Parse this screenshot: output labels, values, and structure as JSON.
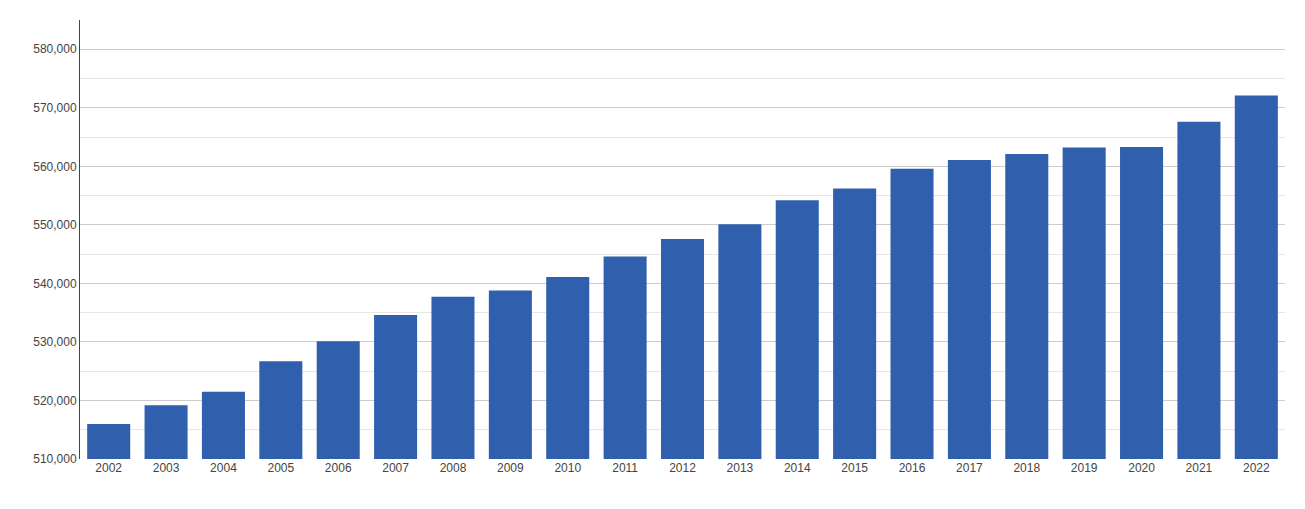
{
  "chart_data": {
    "type": "bar",
    "categories": [
      "2002",
      "2003",
      "2004",
      "2005",
      "2006",
      "2007",
      "2008",
      "2009",
      "2010",
      "2011",
      "2012",
      "2013",
      "2014",
      "2015",
      "2016",
      "2017",
      "2018",
      "2019",
      "2020",
      "2021",
      "2022"
    ],
    "values": [
      516000,
      519200,
      521500,
      526700,
      530100,
      534600,
      537700,
      538800,
      541100,
      544600,
      547600,
      550100,
      554200,
      556200,
      559600,
      561100,
      562100,
      563200,
      563300,
      567600,
      572100
    ],
    "color": "#2f5fad",
    "ylim": [
      510000,
      585000
    ],
    "yticks": [
      {
        "value": 510000,
        "label": "510,000"
      },
      {
        "value": 520000,
        "label": "520,000"
      },
      {
        "value": 530000,
        "label": "530,000"
      },
      {
        "value": 540000,
        "label": "540,000"
      },
      {
        "value": 550000,
        "label": "550,000"
      },
      {
        "value": 560000,
        "label": "560,000"
      },
      {
        "value": 570000,
        "label": "570,000"
      },
      {
        "value": 580000,
        "label": "580,000"
      }
    ],
    "grid": true
  }
}
